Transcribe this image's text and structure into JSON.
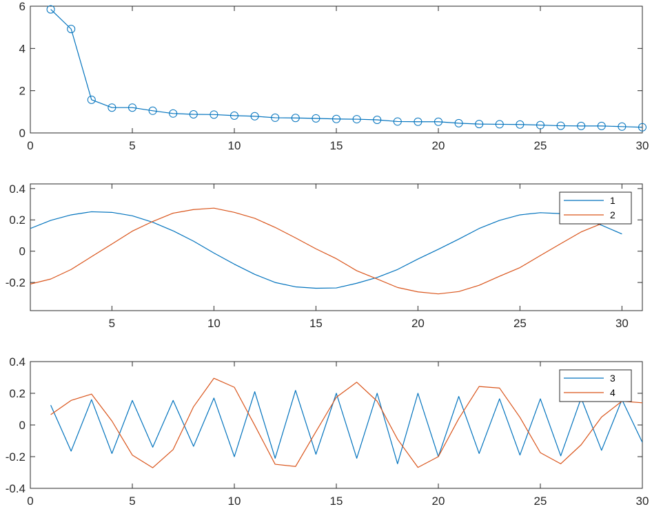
{
  "chart_data": [
    {
      "type": "line",
      "marker": "circle",
      "x": [
        1,
        2,
        3,
        4,
        5,
        6,
        7,
        8,
        9,
        10,
        11,
        12,
        13,
        14,
        15,
        16,
        17,
        18,
        19,
        20,
        21,
        22,
        23,
        24,
        25,
        26,
        27,
        28,
        29,
        30
      ],
      "series": [
        {
          "color": "#0072bd",
          "values": [
            5.85,
            4.92,
            1.57,
            1.2,
            1.2,
            1.05,
            0.92,
            0.88,
            0.87,
            0.82,
            0.79,
            0.72,
            0.71,
            0.69,
            0.66,
            0.65,
            0.62,
            0.54,
            0.53,
            0.53,
            0.46,
            0.42,
            0.41,
            0.4,
            0.37,
            0.34,
            0.33,
            0.33,
            0.3,
            0.27
          ]
        }
      ],
      "xlim": [
        0,
        30
      ],
      "ylim": [
        0,
        6
      ],
      "xticks": [
        "0",
        "5",
        "10",
        "15",
        "20",
        "25",
        "30"
      ],
      "yticks": [
        "0",
        "2",
        "4",
        "6"
      ],
      "grid": false
    },
    {
      "type": "line",
      "x": [
        1,
        2,
        3,
        4,
        5,
        6,
        7,
        8,
        9,
        10,
        11,
        12,
        13,
        14,
        15,
        16,
        17,
        18,
        19,
        20,
        21,
        22,
        23,
        24,
        25,
        26,
        27,
        28,
        29,
        30
      ],
      "series": [
        {
          "name": "1",
          "color": "#0072bd",
          "values": [
            0.145,
            0.197,
            0.232,
            0.252,
            0.248,
            0.226,
            0.185,
            0.13,
            0.064,
            -0.012,
            -0.083,
            -0.148,
            -0.2,
            -0.228,
            -0.237,
            -0.235,
            -0.205,
            -0.168,
            -0.117,
            -0.05,
            0.012,
            0.077,
            0.145,
            0.197,
            0.232,
            0.246,
            0.24,
            0.207,
            0.166,
            0.11
          ]
        },
        {
          "name": "2",
          "color": "#d95319",
          "values": [
            -0.21,
            -0.178,
            -0.117,
            -0.035,
            0.046,
            0.128,
            0.19,
            0.243,
            0.266,
            0.275,
            0.248,
            0.21,
            0.152,
            0.085,
            0.015,
            -0.048,
            -0.125,
            -0.178,
            -0.232,
            -0.26,
            -0.273,
            -0.258,
            -0.218,
            -0.16,
            -0.105,
            -0.028,
            0.048,
            0.123,
            0.176,
            0.195
          ]
        }
      ],
      "xlim": [
        1,
        31
      ],
      "ylim": [
        -0.38,
        0.43
      ],
      "xticks": [
        "5",
        "10",
        "15",
        "20",
        "25",
        "30"
      ],
      "yticks": [
        "-0.2",
        "0",
        "0.2",
        "0.4"
      ],
      "legend": "top-right",
      "grid": false
    },
    {
      "type": "line",
      "x": [
        1,
        2,
        3,
        4,
        5,
        6,
        7,
        8,
        9,
        10,
        11,
        12,
        13,
        14,
        15,
        16,
        17,
        18,
        19,
        20,
        21,
        22,
        23,
        24,
        25,
        26,
        27,
        28,
        29,
        30
      ],
      "series": [
        {
          "name": "3",
          "color": "#0072bd",
          "values": [
            0.125,
            -0.165,
            0.16,
            -0.18,
            0.155,
            -0.14,
            0.155,
            -0.135,
            0.17,
            -0.2,
            0.21,
            -0.21,
            0.218,
            -0.185,
            0.2,
            -0.21,
            0.2,
            -0.245,
            0.2,
            -0.2,
            0.18,
            -0.18,
            0.165,
            -0.19,
            0.165,
            -0.195,
            0.17,
            -0.16,
            0.16,
            -0.11
          ]
        },
        {
          "name": "4",
          "color": "#d95319",
          "values": [
            0.065,
            0.155,
            0.195,
            0.025,
            -0.19,
            -0.27,
            -0.155,
            0.115,
            0.295,
            0.238,
            -0.002,
            -0.248,
            -0.262,
            -0.042,
            0.175,
            0.27,
            0.15,
            -0.09,
            -0.268,
            -0.2,
            0.04,
            0.243,
            0.233,
            0.048,
            -0.175,
            -0.245,
            -0.125,
            0.05,
            0.15,
            0.14
          ]
        }
      ],
      "xlim": [
        0,
        30
      ],
      "ylim": [
        -0.4,
        0.4
      ],
      "xticks": [
        "0",
        "5",
        "10",
        "15",
        "20",
        "25",
        "30"
      ],
      "yticks": [
        "-0.4",
        "-0.2",
        "0",
        "0.2",
        "0.4"
      ],
      "legend": "top-right",
      "grid": false
    }
  ],
  "colors": {
    "series_blue": "#0072bd",
    "series_orange": "#d95319",
    "axis": "#262626"
  }
}
